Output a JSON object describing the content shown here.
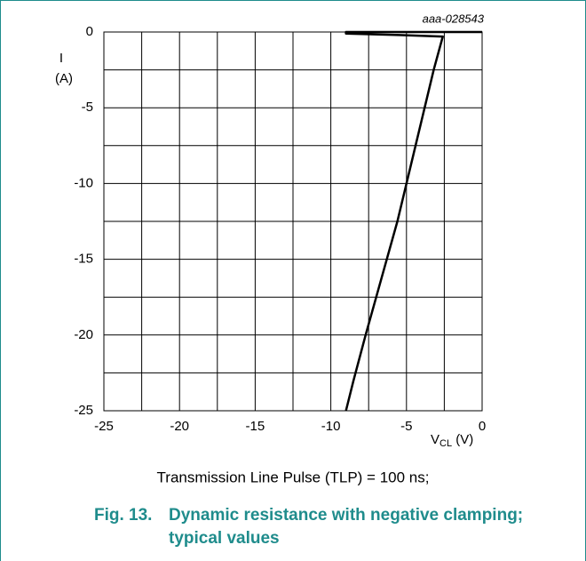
{
  "chart_data": {
    "type": "line",
    "annotation": "aaa-028543",
    "ylabel": [
      "I",
      "(A)"
    ],
    "xlabel": {
      "main": "V",
      "sub": "CL",
      "unit": " (V)"
    },
    "x": [
      -9,
      -8.5,
      -7.7,
      -7,
      -6.3,
      -5.6,
      -5,
      -4.4,
      -3.8,
      -3.2,
      -2.6,
      -5.5,
      -9,
      -9,
      0
    ],
    "series": [
      {
        "name": "I",
        "color": "#000000",
        "values": [
          -25,
          -23,
          -20,
          -17.5,
          -15,
          -12.5,
          -10,
          -7.5,
          -5,
          -2.5,
          -0.3,
          -0.2,
          -0.1,
          0,
          0
        ]
      }
    ],
    "xlim": [
      -25,
      0
    ],
    "ylim": [
      -25,
      0
    ],
    "xticks": [
      -25,
      -20,
      -15,
      -10,
      -5,
      0
    ],
    "yticks": [
      -25,
      -20,
      -15,
      -10,
      -5,
      0
    ],
    "minor_xticks": [
      -22.5,
      -17.5,
      -12.5,
      -7.5,
      -2.5
    ],
    "minor_yticks": [
      -22.5,
      -17.5,
      -12.5,
      -7.5,
      -2.5
    ],
    "grid": true,
    "note": "Transmission Line Pulse (TLP) = 100 ns;",
    "fig_label": "Fig. 13.",
    "caption_lines": [
      "Dynamic resistance with negative clamping;",
      "typical values"
    ]
  }
}
